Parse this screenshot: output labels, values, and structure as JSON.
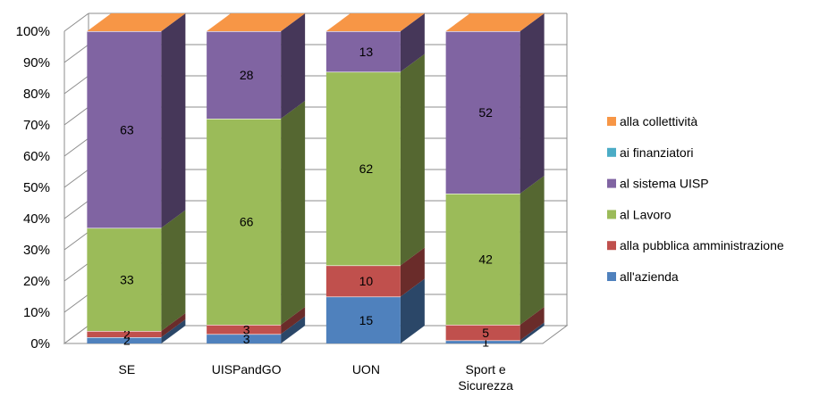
{
  "chart_data": {
    "type": "bar",
    "stacked": "percent",
    "style": "3d",
    "categories": [
      [
        "SE"
      ],
      [
        "UISPandGO"
      ],
      [
        "UON"
      ],
      [
        "Sport e",
        "Sicurezza"
      ]
    ],
    "ylim": [
      0,
      100
    ],
    "yticks": [
      "0%",
      "10%",
      "20%",
      "30%",
      "40%",
      "50%",
      "60%",
      "70%",
      "80%",
      "90%",
      "100%"
    ],
    "grid": true,
    "legend_position": "right",
    "series": [
      {
        "name": "all'azienda",
        "color": "#4F81BD",
        "values": [
          2,
          3,
          15,
          1
        ],
        "labels": [
          "2",
          "3",
          "15",
          "1"
        ]
      },
      {
        "name": "alla pubblica amministrazione",
        "color": "#C0504D",
        "values": [
          2,
          3,
          10,
          5
        ],
        "labels": [
          "2",
          "3",
          "10",
          "5"
        ]
      },
      {
        "name": "al Lavoro",
        "color": "#9BBB59",
        "values": [
          33,
          66,
          62,
          42
        ],
        "labels": [
          "33",
          "66",
          "62",
          "42"
        ]
      },
      {
        "name": "al sistema UISP",
        "color": "#8064A2",
        "values": [
          63,
          28,
          13,
          52
        ],
        "labels": [
          "63",
          "28",
          "13",
          "52"
        ]
      },
      {
        "name": "ai finanziatori",
        "color": "#4BACC6",
        "values": [
          0,
          0,
          0,
          0
        ],
        "labels": [
          "",
          "",
          "",
          ""
        ]
      },
      {
        "name": "alla collettività",
        "color": "#F79646",
        "values": [
          0,
          0,
          0,
          0
        ],
        "labels": [
          "",
          "",
          "",
          ""
        ]
      }
    ]
  }
}
